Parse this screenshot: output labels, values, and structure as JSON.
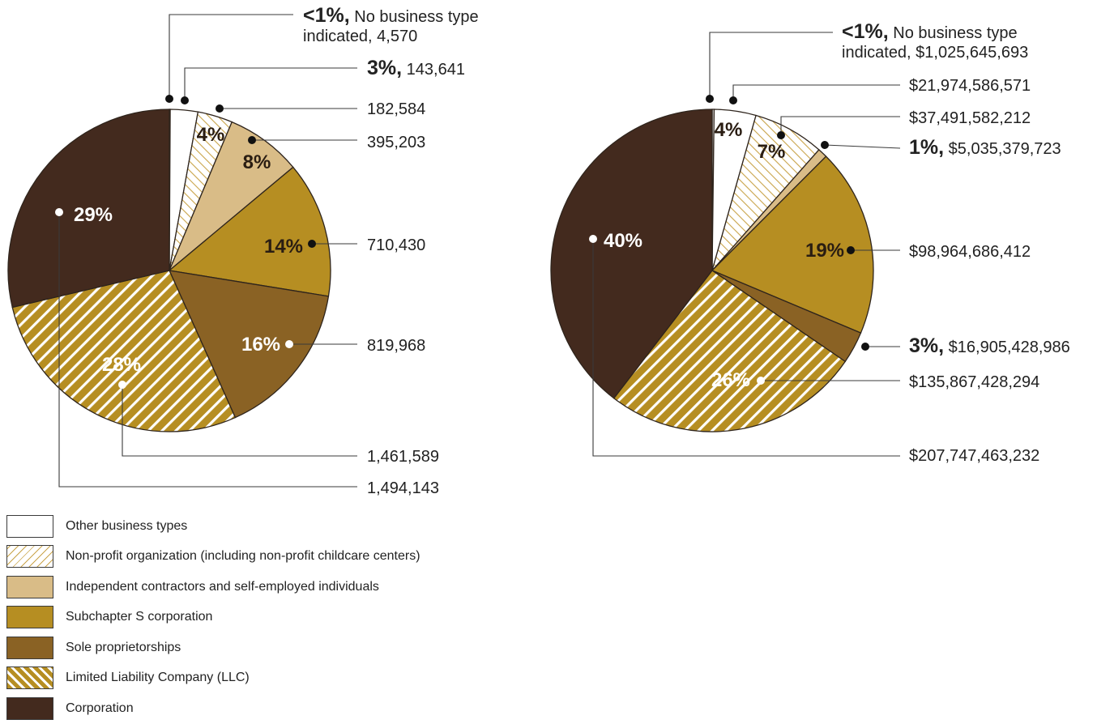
{
  "categories": [
    {
      "name": "Other business types",
      "color": "#ffffff",
      "pattern": "none"
    },
    {
      "name": "Non-profit organization (including non-profit childcare centers)",
      "color": "#ffffff",
      "pattern": "hatch-light",
      "hatch_color": "#c9a44a"
    },
    {
      "name": "Independent contractors and self-employed individuals",
      "color": "#d9bc87",
      "pattern": "none"
    },
    {
      "name": "Subchapter S corporation",
      "color": "#b68e22",
      "pattern": "none"
    },
    {
      "name": "Sole proprietorships",
      "color": "#8a6224",
      "pattern": "none"
    },
    {
      "name": "Limited Liability Company (LLC)",
      "color": "#b68e22",
      "pattern": "hatch-white"
    },
    {
      "name": "Corporation",
      "color": "#432a1e",
      "pattern": "none"
    }
  ],
  "chart_data": [
    {
      "type": "pie",
      "title": "",
      "slices": [
        {
          "category": "No business type indicated",
          "value": 4570,
          "value_label": "4,570",
          "pct_label": "<1%,",
          "label_lines": [
            " No business type",
            "indicated, 4,570"
          ],
          "color": "#ffffff",
          "pattern": "none"
        },
        {
          "category": "Other business types",
          "value": 143641,
          "value_label": "143,641",
          "pct_label": "3%,",
          "label_lines": [
            " 143,641"
          ],
          "color": "#ffffff",
          "pattern": "none"
        },
        {
          "category": "Non-profit organization (including non-profit childcare centers)",
          "value": 182584,
          "value_label": "182,584",
          "pct_label": "4%",
          "label_lines": [
            "182,584"
          ],
          "color": "#ffffff",
          "pattern": "hatch-light"
        },
        {
          "category": "Independent contractors and self-employed individuals",
          "value": 395203,
          "value_label": "395,203",
          "pct_label": "8%",
          "label_lines": [
            "395,203"
          ],
          "color": "#d9bc87",
          "pattern": "none"
        },
        {
          "category": "Subchapter S corporation",
          "value": 710430,
          "value_label": "710,430",
          "pct_label": "14%",
          "label_lines": [
            "710,430"
          ],
          "color": "#b68e22",
          "pattern": "none"
        },
        {
          "category": "Sole proprietorships",
          "value": 819968,
          "value_label": "819,968",
          "pct_label": "16%",
          "label_lines": [
            "819,968"
          ],
          "color": "#8a6224",
          "pattern": "none"
        },
        {
          "category": "Limited Liability Company (LLC)",
          "value": 1461589,
          "value_label": "1,461,589",
          "pct_label": "28%",
          "label_lines": [
            "1,461,589"
          ],
          "color": "#b68e22",
          "pattern": "hatch-white"
        },
        {
          "category": "Corporation",
          "value": 1494143,
          "value_label": "1,494,143",
          "pct_label": "29%",
          "label_lines": [
            "1,494,143"
          ],
          "color": "#432a1e",
          "pattern": "none"
        }
      ]
    },
    {
      "type": "pie",
      "title": "",
      "slices": [
        {
          "category": "No business type indicated",
          "value": 1025645693,
          "value_label": "$1,025,645,693",
          "pct_label": "<1%,",
          "label_lines": [
            " No business type",
            "indicated, $1,025,645,693"
          ],
          "color": "#ffffff",
          "pattern": "none"
        },
        {
          "category": "Other business types",
          "value": 21974586571,
          "value_label": "$21,974,586,571",
          "pct_label": "4%",
          "label_lines": [
            "$21,974,586,571"
          ],
          "color": "#ffffff",
          "pattern": "none"
        },
        {
          "category": "Non-profit organization (including non-profit childcare centers)",
          "value": 37491582212,
          "value_label": "$37,491,582,212",
          "pct_label": "7%",
          "label_lines": [
            "$37,491,582,212"
          ],
          "color": "#ffffff",
          "pattern": "hatch-light"
        },
        {
          "category": "Independent contractors and self-employed individuals",
          "value": 5035379723,
          "value_label": "$5,035,379,723",
          "pct_label": "1%,",
          "label_lines": [
            " $5,035,379,723"
          ],
          "color": "#d9bc87",
          "pattern": "none"
        },
        {
          "category": "Subchapter S corporation",
          "value": 98964686412,
          "value_label": "$98,964,686,412",
          "pct_label": "19%",
          "label_lines": [
            "$98,964,686,412"
          ],
          "color": "#b68e22",
          "pattern": "none"
        },
        {
          "category": "Sole proprietorships",
          "value": 16905428986,
          "value_label": "$16,905,428,986",
          "pct_label": "3%,",
          "label_lines": [
            " $16,905,428,986"
          ],
          "color": "#8a6224",
          "pattern": "none"
        },
        {
          "category": "Limited Liability Company (LLC)",
          "value": 135867428294,
          "value_label": "$135,867,428,294",
          "pct_label": "26%",
          "label_lines": [
            "$135,867,428,294"
          ],
          "color": "#b68e22",
          "pattern": "hatch-white"
        },
        {
          "category": "Corporation",
          "value": 207747463232,
          "value_label": "$207,747,463,232",
          "pct_label": "40%",
          "label_lines": [
            "$207,747,463,232"
          ],
          "color": "#432a1e",
          "pattern": "none"
        }
      ]
    }
  ]
}
